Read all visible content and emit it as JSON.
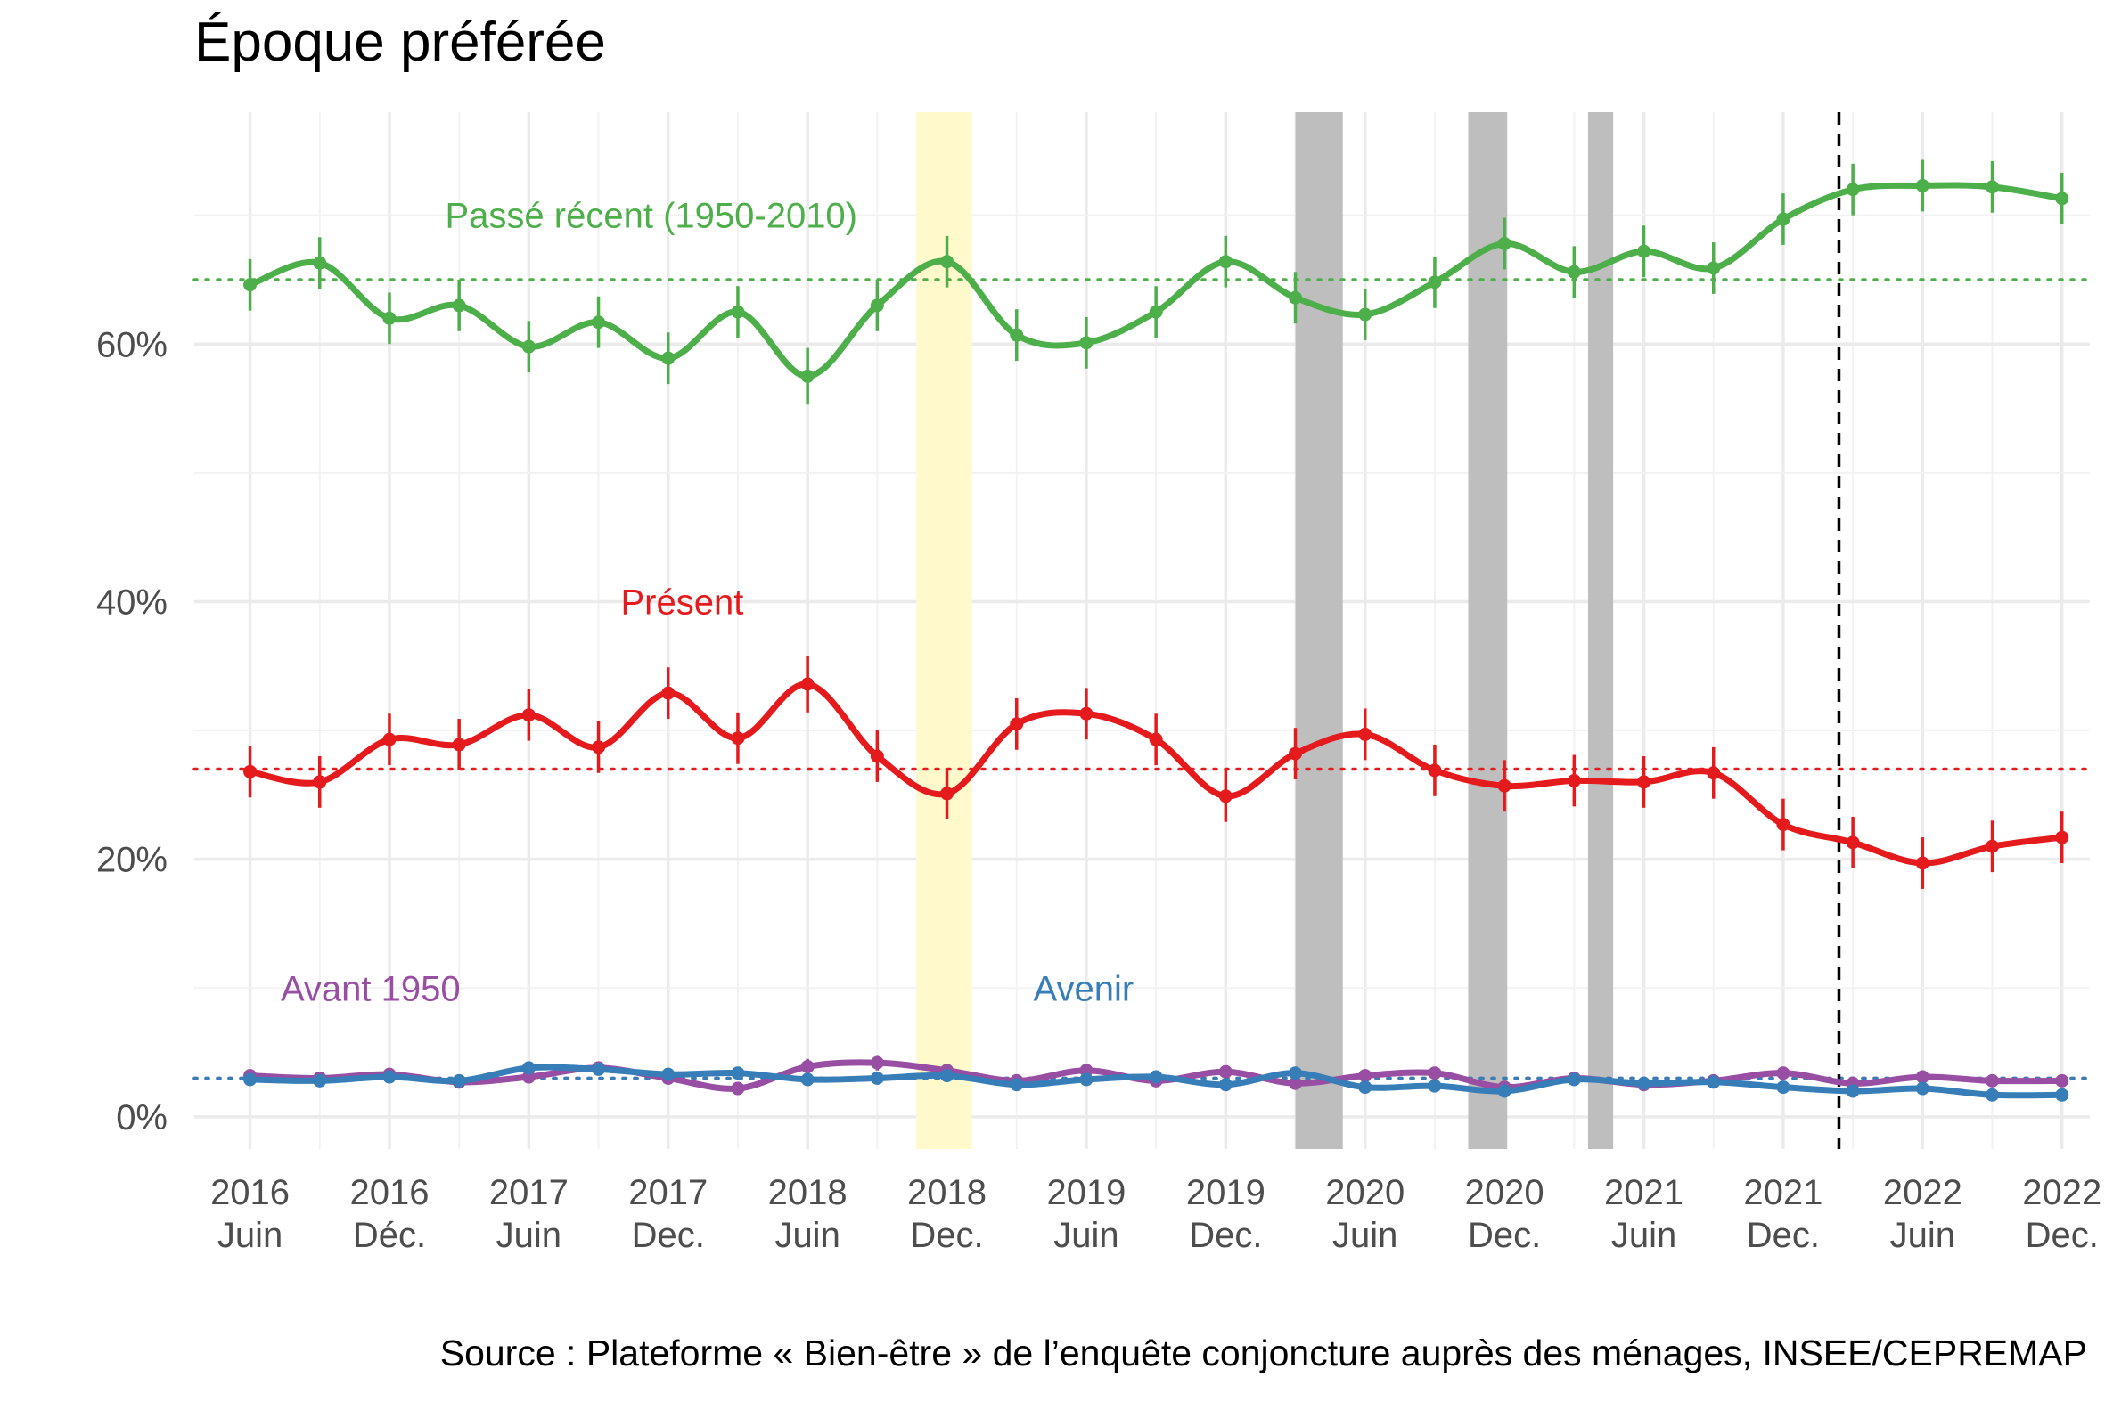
{
  "chart_data": {
    "type": "line",
    "title": "Époque préférée",
    "caption": "Source : Plateforme « Bien-être » de l’enquête conjoncture auprès des ménages, INSEE/CEPREMAP",
    "xlabel": "",
    "ylabel": "",
    "x_range": [
      2016.3,
      2023.1
    ],
    "ylim": [
      -2.5,
      78
    ],
    "grid": true,
    "legend": "none",
    "y_ticks": [
      {
        "value": 0,
        "label": "0%"
      },
      {
        "value": 20,
        "label": "20%"
      },
      {
        "value": 40,
        "label": "40%"
      },
      {
        "value": 60,
        "label": "60%"
      }
    ],
    "x_ticks": [
      {
        "value": 2016.5,
        "line1": "2016",
        "line2": "Juin"
      },
      {
        "value": 2017.0,
        "line1": "2016",
        "line2": "Déc."
      },
      {
        "value": 2017.5,
        "line1": "2017",
        "line2": "Juin"
      },
      {
        "value": 2018.0,
        "line1": "2017",
        "line2": "Dec."
      },
      {
        "value": 2018.5,
        "line1": "2018",
        "line2": "Juin"
      },
      {
        "value": 2019.0,
        "line1": "2018",
        "line2": "Dec."
      },
      {
        "value": 2019.5,
        "line1": "2019",
        "line2": "Juin"
      },
      {
        "value": 2020.0,
        "line1": "2019",
        "line2": "Dec."
      },
      {
        "value": 2020.5,
        "line1": "2020",
        "line2": "Juin"
      },
      {
        "value": 2021.0,
        "line1": "2020",
        "line2": "Dec."
      },
      {
        "value": 2021.5,
        "line1": "2021",
        "line2": "Juin"
      },
      {
        "value": 2022.0,
        "line1": "2021",
        "line2": "Dec."
      },
      {
        "value": 2022.5,
        "line1": "2022",
        "line2": "Juin"
      },
      {
        "value": 2023.0,
        "line1": "2022",
        "line2": "Dec."
      }
    ],
    "shaded_periods": [
      {
        "start": 2018.89,
        "end": 2019.09,
        "color": "#fff9cc"
      },
      {
        "start": 2020.25,
        "end": 2020.42,
        "color": "#bebebe"
      },
      {
        "start": 2020.87,
        "end": 2021.01,
        "color": "#bebebe"
      },
      {
        "start": 2021.3,
        "end": 2021.39,
        "color": "#bebebe"
      }
    ],
    "vertical_marker": {
      "x": 2022.2,
      "color": "#000000",
      "style": "dashed"
    },
    "point_x": [
      2016.5,
      2016.75,
      2017.0,
      2017.25,
      2017.5,
      2017.75,
      2018.0,
      2018.25,
      2018.5,
      2018.75,
      2019.0,
      2019.25,
      2019.5,
      2019.75,
      2020.0,
      2020.25,
      2020.5,
      2020.75,
      2021.0,
      2021.25,
      2021.5,
      2021.75,
      2022.0,
      2022.25,
      2022.5,
      2022.75,
      2023.0
    ],
    "series": [
      {
        "name": "Passé récent (1950-2010)",
        "color": "#4daf4a",
        "label_pos": {
          "x": 2017.2,
          "y": 70
        },
        "label_anchor": "start",
        "reference": 65,
        "values": [
          64.6,
          66.3,
          62.0,
          63.0,
          59.8,
          61.7,
          58.9,
          62.5,
          57.5,
          63.0,
          66.4,
          60.7,
          60.1,
          62.5,
          66.4,
          63.6,
          62.3,
          64.8,
          67.8,
          65.6,
          67.2,
          65.9,
          69.7,
          72.0,
          72.3,
          72.2,
          71.3
        ],
        "errors": [
          2.0,
          2.0,
          2.0,
          2.0,
          2.0,
          2.0,
          2.0,
          2.0,
          2.2,
          2.0,
          2.0,
          2.0,
          2.0,
          2.0,
          2.0,
          2.0,
          2.0,
          2.0,
          2.0,
          2.0,
          2.0,
          2.0,
          2.0,
          2.0,
          2.0,
          2.0,
          2.0
        ]
      },
      {
        "name": "Présent",
        "color": "#e41a1c",
        "label_pos": {
          "x": 2018.05,
          "y": 40
        },
        "label_anchor": "middle",
        "reference": 27,
        "values": [
          26.8,
          26.0,
          29.3,
          28.9,
          31.2,
          28.7,
          32.9,
          29.4,
          33.6,
          28.0,
          25.1,
          30.5,
          31.3,
          29.3,
          24.9,
          28.2,
          29.7,
          26.9,
          25.7,
          26.1,
          26.0,
          26.7,
          22.7,
          21.3,
          19.7,
          21.0,
          21.7
        ],
        "errors": [
          2.0,
          2.0,
          2.0,
          2.0,
          2.0,
          2.0,
          2.0,
          2.0,
          2.2,
          2.0,
          2.0,
          2.0,
          2.0,
          2.0,
          2.0,
          2.0,
          2.0,
          2.0,
          2.0,
          2.0,
          2.0,
          2.0,
          2.0,
          2.0,
          2.0,
          2.0,
          2.0
        ]
      },
      {
        "name": "Avant 1950",
        "color": "#984ea3",
        "label_pos": {
          "x": 2016.61,
          "y": 10
        },
        "label_anchor": "start",
        "reference": 3,
        "values": [
          3.2,
          3.0,
          3.3,
          2.7,
          3.1,
          3.8,
          3.0,
          2.2,
          3.9,
          4.2,
          3.6,
          2.8,
          3.6,
          2.8,
          3.5,
          2.6,
          3.2,
          3.4,
          2.3,
          3.0,
          2.5,
          2.8,
          3.4,
          2.6,
          3.1,
          2.8,
          2.8
        ],
        "errors": [
          0.5,
          0.5,
          0.5,
          0.5,
          0.5,
          0.5,
          0.5,
          0.5,
          0.6,
          0.6,
          0.5,
          0.5,
          0.5,
          0.5,
          0.5,
          0.5,
          0.5,
          0.5,
          0.5,
          0.5,
          0.5,
          0.5,
          0.5,
          0.5,
          0.5,
          0.5,
          0.5
        ]
      },
      {
        "name": "Avenir",
        "color": "#377eb8",
        "label_pos": {
          "x": 2019.31,
          "y": 10
        },
        "label_anchor": "start",
        "reference": 3,
        "values": [
          2.9,
          2.8,
          3.1,
          2.8,
          3.8,
          3.7,
          3.3,
          3.4,
          2.9,
          3.0,
          3.2,
          2.5,
          2.9,
          3.1,
          2.5,
          3.4,
          2.3,
          2.4,
          2.0,
          2.9,
          2.6,
          2.7,
          2.3,
          2.0,
          2.2,
          1.7,
          1.7
        ],
        "errors": [
          0.5,
          0.5,
          0.5,
          0.5,
          0.5,
          0.5,
          0.5,
          0.5,
          0.5,
          0.5,
          0.5,
          0.5,
          0.5,
          0.5,
          0.5,
          0.5,
          0.5,
          0.5,
          0.5,
          0.5,
          0.5,
          0.5,
          0.5,
          0.5,
          0.5,
          0.5,
          0.5
        ]
      }
    ]
  }
}
